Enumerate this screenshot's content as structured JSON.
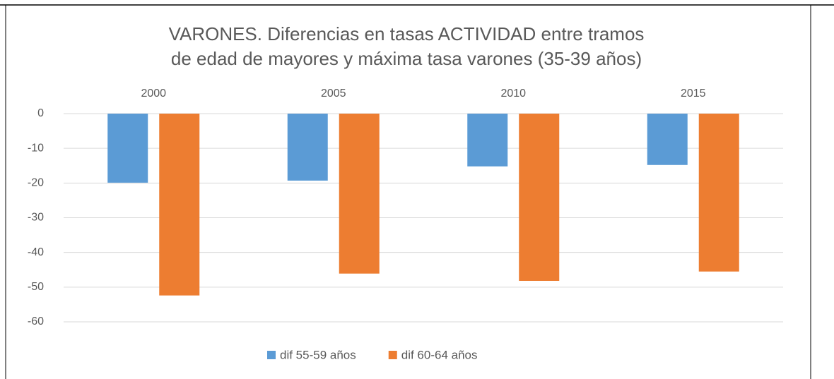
{
  "chart_data": {
    "type": "bar",
    "title": [
      "VARONES. Diferencias en tasas ACTIVIDAD entre tramos",
      "de edad de mayores y máxima tasa varones (35-39 años)"
    ],
    "categories": [
      "2000",
      "2005",
      "2010",
      "2015"
    ],
    "series": [
      {
        "name": "dif 55-59 años",
        "color": "#5b9bd5",
        "values": [
          -19.9,
          -19.3,
          -15.2,
          -14.8
        ]
      },
      {
        "name": "dif 60-64 años",
        "color": "#ed7d31",
        "values": [
          -52.4,
          -46.1,
          -48.2,
          -45.5
        ]
      }
    ],
    "ylim": [
      -60,
      0
    ],
    "yticks": [
      0,
      -10,
      -20,
      -30,
      -40,
      -50,
      -60
    ],
    "grid": true,
    "legend": "bottom"
  }
}
